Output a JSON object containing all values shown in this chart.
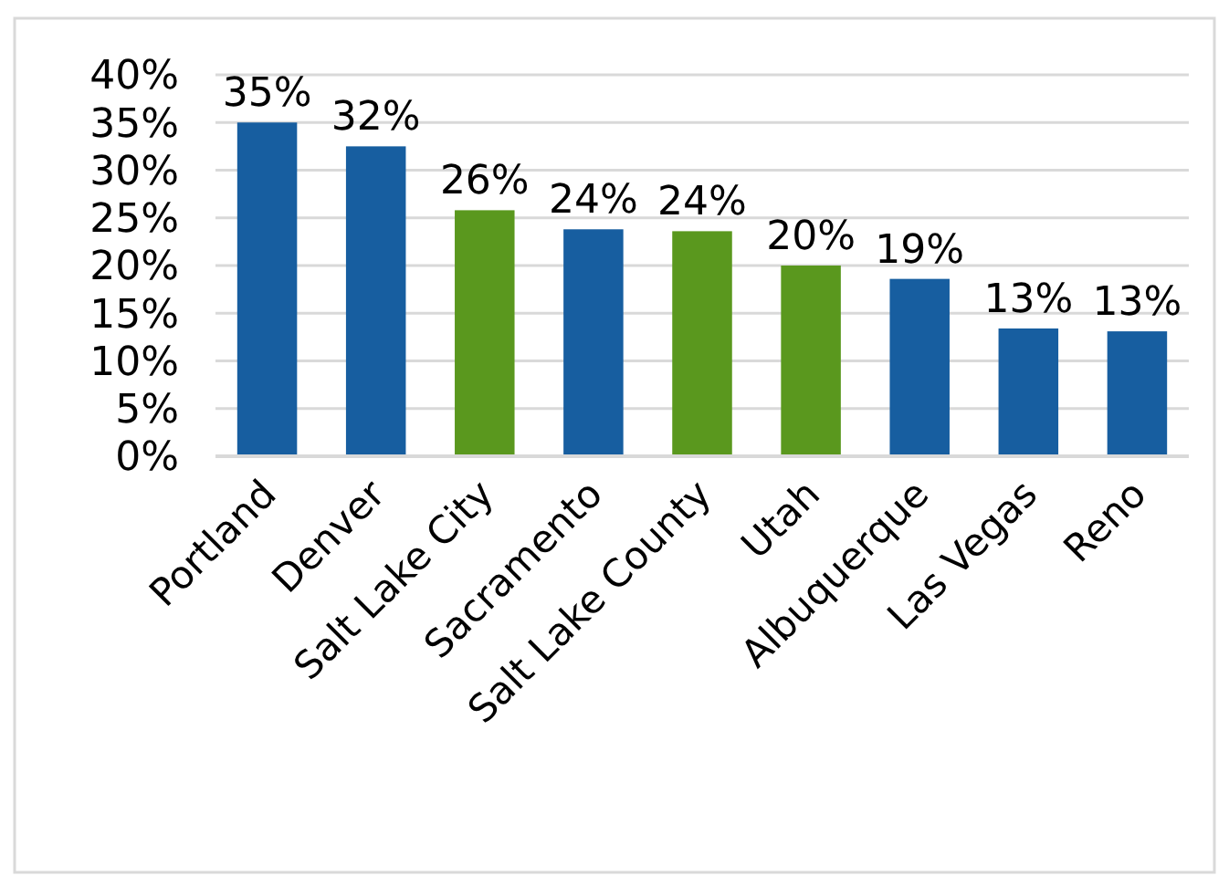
{
  "chart_data": {
    "type": "bar",
    "categories": [
      "Portland",
      "Denver",
      "Salt Lake City",
      "Sacramento",
      "Salt Lake County",
      "Utah",
      "Albuquerque",
      "Las Vegas",
      "Reno"
    ],
    "values": [
      35,
      32.5,
      25.8,
      23.8,
      23.6,
      20,
      18.6,
      13.4,
      13.1
    ],
    "colors": [
      "#175ea0",
      "#175ea0",
      "#5a981e",
      "#175ea0",
      "#5a981e",
      "#5a981e",
      "#175ea0",
      "#175ea0",
      "#175ea0"
    ],
    "value_labels": [
      "35%",
      "32%",
      "26%",
      "24%",
      "24%",
      "20%",
      "19%",
      "13%",
      "13%"
    ],
    "ylim": [
      0,
      40
    ],
    "yticks": [
      {
        "value": 0,
        "label": "0%"
      },
      {
        "value": 5,
        "label": "5%"
      },
      {
        "value": 10,
        "label": "10%"
      },
      {
        "value": 15,
        "label": "15%"
      },
      {
        "value": 20,
        "label": "20%"
      },
      {
        "value": 25,
        "label": "25%"
      },
      {
        "value": 30,
        "label": "30%"
      },
      {
        "value": 35,
        "label": "35%"
      },
      {
        "value": 40,
        "label": "40%"
      }
    ],
    "grid": "y"
  }
}
